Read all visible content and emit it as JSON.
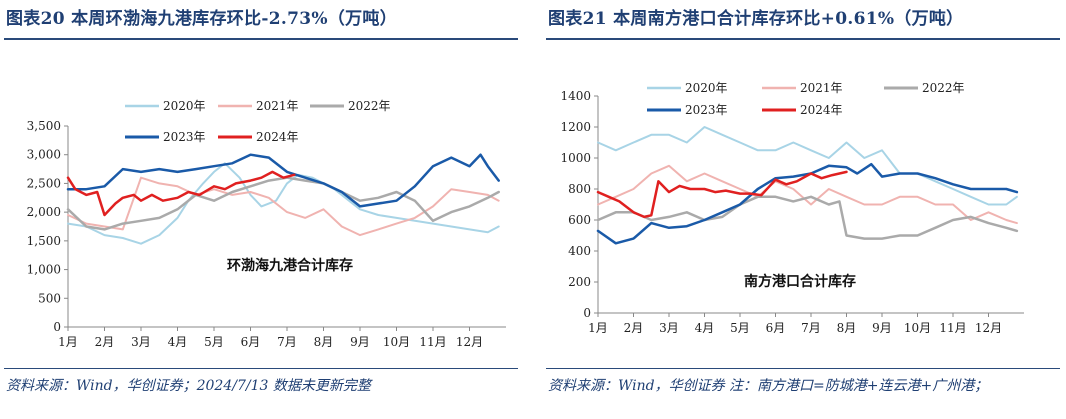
{
  "left_panel": {
    "title": "图表20 本周环渤海九港库存环比-2.73%（万吨）",
    "source": "资料来源：Wind，华创证券；2024/7/13 数据未更新完整"
  },
  "right_panel": {
    "title": "图表21 本周南方港口合计库存环比+0.61%（万吨）",
    "source": "资料来源：Wind，华创证券 注：南方港口=防城港+连云港+广州港；"
  },
  "chart_data": [
    {
      "type": "line",
      "title": "环渤海九港合计库存",
      "ylim": [
        0,
        3500
      ],
      "yticks": [
        "0",
        "500",
        "1,000",
        "1,500",
        "2,000",
        "2,500",
        "3,000",
        "3,500"
      ],
      "ytick_values": [
        0,
        500,
        1000,
        1500,
        2000,
        2500,
        3000,
        3500
      ],
      "xlim": [
        1,
        13
      ],
      "xticks": [
        "1月",
        "2月",
        "3月",
        "4月",
        "5月",
        "6月",
        "7月",
        "8月",
        "9月",
        "10月",
        "11月",
        "12月"
      ],
      "legend": [
        "2020年",
        "2021年",
        "2022年",
        "2023年",
        "2024年"
      ],
      "legend_position": "top",
      "grid": false,
      "series": [
        {
          "name": "2020年",
          "color": "#a8d4e6",
          "width": 2,
          "x": [
            1,
            1.5,
            2,
            2.5,
            3,
            3.5,
            4,
            4.3,
            4.7,
            5,
            5.3,
            5.7,
            6,
            6.3,
            6.7,
            7,
            7.3,
            7.7,
            8,
            8.3,
            8.7,
            9,
            9.5,
            10,
            10.5,
            11,
            11.5,
            12,
            12.5,
            12.8
          ],
          "y": [
            1800,
            1750,
            1600,
            1550,
            1450,
            1600,
            1900,
            2200,
            2500,
            2700,
            2850,
            2600,
            2300,
            2100,
            2200,
            2500,
            2650,
            2600,
            2500,
            2400,
            2200,
            2050,
            1950,
            1900,
            1850,
            1800,
            1750,
            1700,
            1650,
            1750
          ]
        },
        {
          "name": "2021年",
          "color": "#f0b3b0",
          "width": 2,
          "x": [
            1,
            1.5,
            2,
            2.5,
            3,
            3.5,
            4,
            4.5,
            5,
            5.5,
            6,
            6.5,
            7,
            7.5,
            8,
            8.5,
            9,
            9.5,
            10,
            10.5,
            11,
            11.5,
            12,
            12.5,
            12.8
          ],
          "y": [
            1950,
            1800,
            1750,
            1700,
            2600,
            2500,
            2450,
            2300,
            2400,
            2300,
            2350,
            2250,
            2000,
            1900,
            2050,
            1750,
            1600,
            1700,
            1800,
            1900,
            2100,
            2400,
            2350,
            2300,
            2200
          ]
        },
        {
          "name": "2022年",
          "color": "#aaaaaa",
          "width": 2.5,
          "x": [
            1,
            1.5,
            2,
            2.5,
            3,
            3.5,
            4,
            4.5,
            5,
            5.5,
            6,
            6.5,
            7,
            7.5,
            8,
            8.5,
            9,
            9.5,
            10,
            10.5,
            11,
            11.5,
            12,
            12.5,
            12.8
          ],
          "y": [
            2050,
            1750,
            1700,
            1800,
            1850,
            1900,
            2050,
            2300,
            2200,
            2350,
            2450,
            2550,
            2600,
            2550,
            2500,
            2350,
            2200,
            2250,
            2350,
            2200,
            1850,
            2000,
            2100,
            2250,
            2350
          ]
        },
        {
          "name": "2023年",
          "color": "#1a5aa8",
          "width": 2.5,
          "x": [
            1,
            1.5,
            2,
            2.5,
            3,
            3.5,
            4,
            4.5,
            5,
            5.5,
            6,
            6.5,
            7,
            7.5,
            8,
            8.5,
            9,
            9.5,
            10,
            10.5,
            11,
            11.5,
            12,
            12.3,
            12.5,
            12.8
          ],
          "y": [
            2400,
            2400,
            2450,
            2750,
            2700,
            2750,
            2700,
            2750,
            2800,
            2850,
            3000,
            2950,
            2700,
            2600,
            2500,
            2350,
            2100,
            2150,
            2200,
            2450,
            2800,
            2950,
            2800,
            3000,
            2800,
            2550
          ]
        },
        {
          "name": "2024年",
          "color": "#e02020",
          "width": 2.5,
          "x": [
            1,
            1.2,
            1.5,
            1.8,
            2,
            2.3,
            2.5,
            2.8,
            3,
            3.3,
            3.6,
            4,
            4.3,
            4.6,
            5,
            5.3,
            5.6,
            6,
            6.3,
            6.6,
            6.9,
            7.2
          ],
          "y": [
            2600,
            2400,
            2300,
            2350,
            1950,
            2150,
            2250,
            2300,
            2200,
            2300,
            2200,
            2250,
            2350,
            2300,
            2450,
            2400,
            2500,
            2550,
            2600,
            2700,
            2600,
            2650
          ]
        }
      ]
    },
    {
      "type": "line",
      "title": "南方港口合计库存",
      "ylim": [
        0,
        1400
      ],
      "yticks": [
        "0",
        "200",
        "400",
        "600",
        "800",
        "1000",
        "1200",
        "1400"
      ],
      "ytick_values": [
        0,
        200,
        400,
        600,
        800,
        1000,
        1200,
        1400
      ],
      "xlim": [
        1,
        13
      ],
      "xticks": [
        "1月",
        "2月",
        "3月",
        "4月",
        "5月",
        "6月",
        "7月",
        "8月",
        "9月",
        "10月",
        "11月",
        "12月"
      ],
      "legend": [
        "2020年",
        "2021年",
        "2022年",
        "2023年",
        "2024年"
      ],
      "legend_position": "top",
      "grid": false,
      "series": [
        {
          "name": "2020年",
          "color": "#a8d4e6",
          "width": 2,
          "x": [
            1,
            1.5,
            2,
            2.5,
            3,
            3.5,
            4,
            4.5,
            5,
            5.5,
            6,
            6.5,
            7,
            7.5,
            8,
            8.5,
            9,
            9.5,
            10,
            10.5,
            11,
            11.5,
            12,
            12.5,
            12.8
          ],
          "y": [
            1100,
            1050,
            1100,
            1150,
            1150,
            1100,
            1200,
            1150,
            1100,
            1050,
            1050,
            1100,
            1050,
            1000,
            1100,
            1000,
            1050,
            900,
            900,
            850,
            800,
            750,
            700,
            700,
            750
          ]
        },
        {
          "name": "2021年",
          "color": "#f0b3b0",
          "width": 2,
          "x": [
            1,
            1.5,
            2,
            2.5,
            3,
            3.5,
            4,
            4.5,
            5,
            5.5,
            6,
            6.5,
            7,
            7.5,
            8,
            8.5,
            9,
            9.5,
            10,
            10.5,
            11,
            11.5,
            12,
            12.5,
            12.8
          ],
          "y": [
            700,
            750,
            800,
            900,
            950,
            850,
            900,
            850,
            800,
            750,
            850,
            800,
            700,
            800,
            750,
            700,
            700,
            750,
            750,
            700,
            700,
            600,
            650,
            600,
            580
          ]
        },
        {
          "name": "2022年",
          "color": "#aaaaaa",
          "width": 2.5,
          "x": [
            1,
            1.5,
            2,
            2.5,
            3,
            3.5,
            4,
            4.5,
            5,
            5.5,
            6,
            6.5,
            7,
            7.5,
            7.8,
            8,
            8.5,
            9,
            9.5,
            10,
            10.5,
            11,
            11.5,
            12,
            12.5,
            12.8
          ],
          "y": [
            600,
            650,
            650,
            600,
            620,
            650,
            600,
            620,
            700,
            750,
            750,
            720,
            750,
            700,
            720,
            500,
            480,
            480,
            500,
            500,
            550,
            600,
            620,
            580,
            550,
            530
          ]
        },
        {
          "name": "2023年",
          "color": "#1a5aa8",
          "width": 2.5,
          "x": [
            1,
            1.5,
            2,
            2.5,
            3,
            3.5,
            4,
            4.5,
            5,
            5.5,
            6,
            6.5,
            7,
            7.5,
            8,
            8.3,
            8.7,
            9,
            9.5,
            10,
            10.5,
            11,
            11.5,
            12,
            12.5,
            12.8
          ],
          "y": [
            530,
            450,
            480,
            580,
            550,
            560,
            600,
            650,
            700,
            800,
            870,
            880,
            900,
            950,
            940,
            900,
            960,
            880,
            900,
            900,
            870,
            830,
            800,
            800,
            800,
            780
          ]
        },
        {
          "name": "2024年",
          "color": "#e02020",
          "width": 2.5,
          "x": [
            1,
            1.3,
            1.6,
            2,
            2.3,
            2.5,
            2.7,
            3,
            3.3,
            3.6,
            4,
            4.3,
            4.6,
            5,
            5.3,
            5.6,
            6,
            6.3,
            6.6,
            7,
            7.3,
            7.6,
            8
          ],
          "y": [
            780,
            750,
            720,
            650,
            620,
            630,
            850,
            780,
            820,
            800,
            800,
            780,
            790,
            770,
            770,
            760,
            860,
            830,
            850,
            900,
            870,
            890,
            910
          ]
        }
      ]
    }
  ]
}
